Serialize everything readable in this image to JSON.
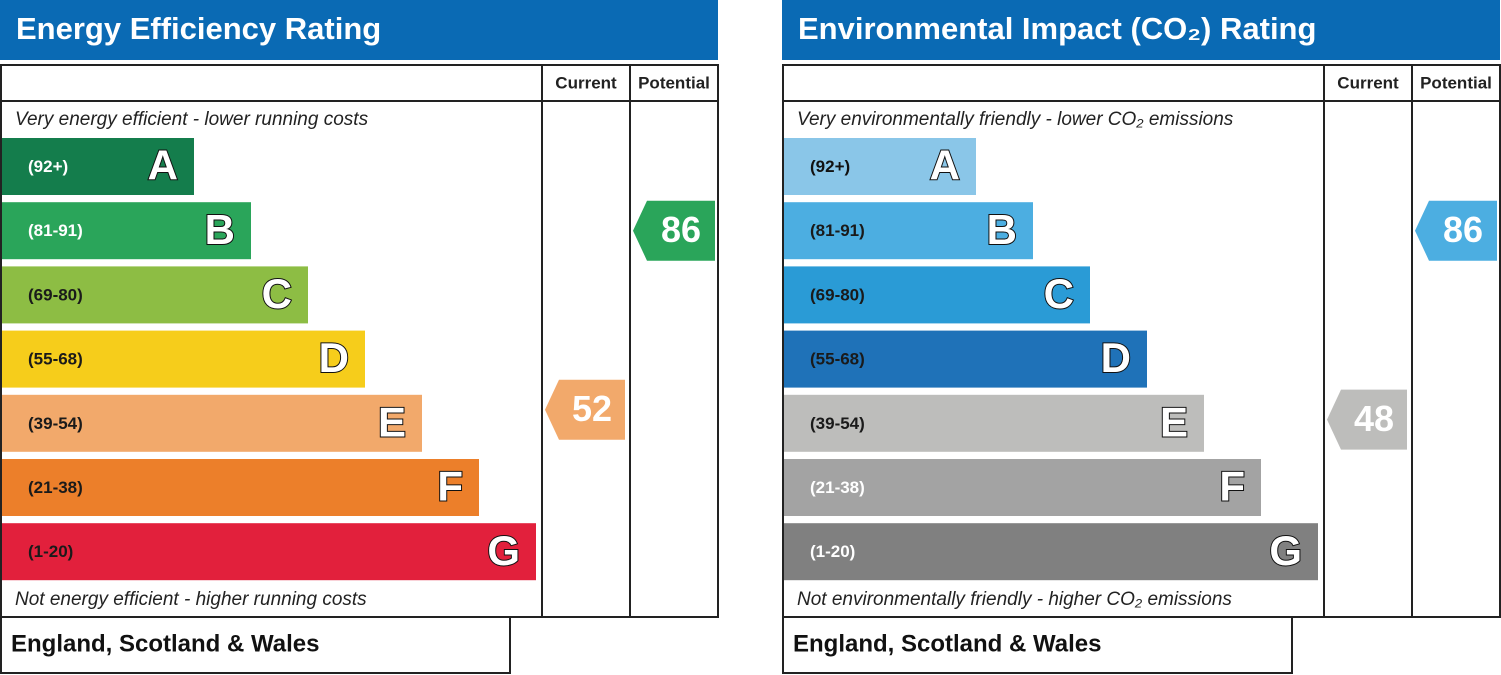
{
  "panels": [
    {
      "title": "Energy Efficiency Rating",
      "title_color": "#0a6ab4",
      "headers": [
        "Current",
        "Potential"
      ],
      "top_note": "Very energy efficient - lower running costs",
      "bottom_note": "Not energy efficient - higher running costs",
      "bands": [
        {
          "range": "(92+)",
          "letter": "A",
          "color": "#147d4c",
          "text_color": "#ffffff"
        },
        {
          "range": "(81-91)",
          "letter": "B",
          "color": "#2aa55a",
          "text_color": "#ffffff"
        },
        {
          "range": "(69-80)",
          "letter": "C",
          "color": "#8dbd44",
          "text_color": "#1a1a1a"
        },
        {
          "range": "(55-68)",
          "letter": "D",
          "color": "#f6cd1b",
          "text_color": "#1a1a1a"
        },
        {
          "range": "(39-54)",
          "letter": "E",
          "color": "#f2a96b",
          "text_color": "#1a1a1a"
        },
        {
          "range": "(21-38)",
          "letter": "F",
          "color": "#ec7f2a",
          "text_color": "#1a1a1a"
        },
        {
          "range": "(1-20)",
          "letter": "G",
          "color": "#e2203c",
          "text_color": "#1a1a1a"
        }
      ],
      "current": 52,
      "potential": 86,
      "footer": "England, Scotland & Wales"
    },
    {
      "title": "Environmental Impact (CO₂) Rating",
      "title_color": "#0a6ab4",
      "headers": [
        "Current",
        "Potential"
      ],
      "top_note": "Very environmentally friendly - lower CO₂ emissions",
      "bottom_note": "Not environmentally friendly - higher CO₂ emissions",
      "bands": [
        {
          "range": "(92+)",
          "letter": "A",
          "color": "#8ac6e8",
          "text_color": "#111111"
        },
        {
          "range": "(81-91)",
          "letter": "B",
          "color": "#4caee1",
          "text_color": "#1a1a1a"
        },
        {
          "range": "(69-80)",
          "letter": "C",
          "color": "#2a9bd6",
          "text_color": "#1a1a1a"
        },
        {
          "range": "(55-68)",
          "letter": "D",
          "color": "#1f72b8",
          "text_color": "#1a1a1a"
        },
        {
          "range": "(39-54)",
          "letter": "E",
          "color": "#bdbdbb",
          "text_color": "#1a1a1a"
        },
        {
          "range": "(21-38)",
          "letter": "F",
          "color": "#a3a3a3",
          "text_color": "#ffffff"
        },
        {
          "range": "(1-20)",
          "letter": "G",
          "color": "#808080",
          "text_color": "#ffffff"
        }
      ],
      "current": 48,
      "potential": 86,
      "footer": "England, Scotland & Wales"
    }
  ]
}
